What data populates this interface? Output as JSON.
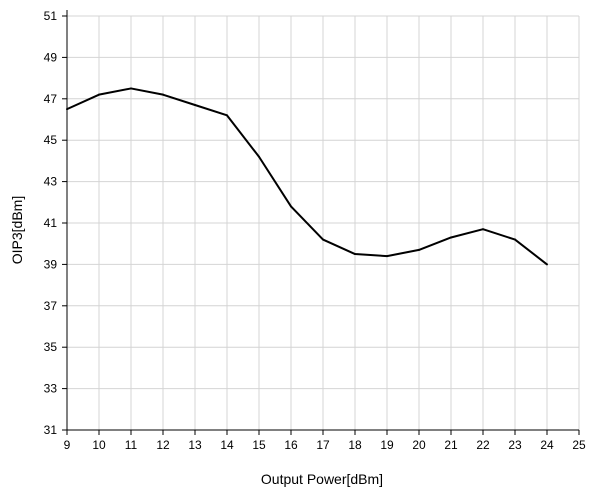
{
  "chart_data": {
    "type": "line",
    "title": "",
    "xlabel": "Output Power[dBm]",
    "ylabel": "OIP3[dBm]",
    "xlim": [
      9,
      25
    ],
    "ylim": [
      31,
      51
    ],
    "x_ticks": [
      9,
      10,
      11,
      12,
      13,
      14,
      15,
      16,
      17,
      18,
      19,
      20,
      21,
      22,
      23,
      24,
      25
    ],
    "y_ticks": [
      31,
      33,
      35,
      37,
      39,
      41,
      43,
      45,
      47,
      49,
      51
    ],
    "grid": true,
    "legend": "none",
    "series": [
      {
        "color": "#000000",
        "x": [
          9,
          10,
          11,
          12,
          13,
          14,
          15,
          16,
          17,
          18,
          19,
          20,
          21,
          22,
          23,
          24
        ],
        "y": [
          46.5,
          47.2,
          47.5,
          47.2,
          46.7,
          46.2,
          44.2,
          41.8,
          40.2,
          39.5,
          39.4,
          39.7,
          40.3,
          40.7,
          40.2,
          39.0
        ]
      }
    ]
  }
}
